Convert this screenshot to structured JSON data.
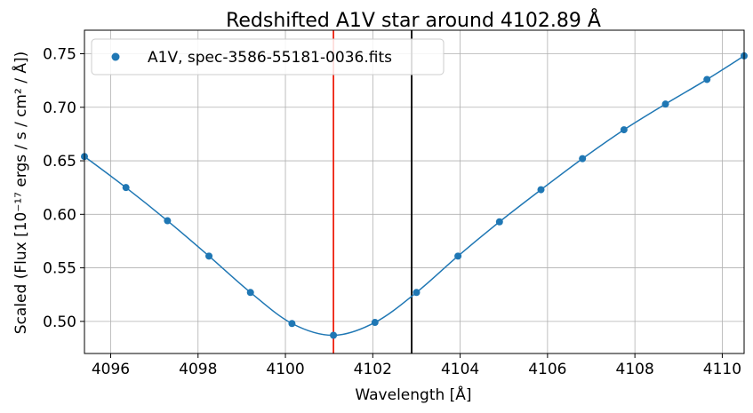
{
  "chart_data": {
    "type": "line",
    "title": "Redshifted A1V star around 4102.89 Å",
    "xlabel": "Wavelength [Å]",
    "ylabel": "Scaled (Flux [10⁻¹⁷ ergs / s / cm² / Å])",
    "xlim": [
      4095.4,
      4110.5
    ],
    "ylim": [
      0.47,
      0.772
    ],
    "xticks": [
      4096,
      4098,
      4100,
      4102,
      4104,
      4106,
      4108,
      4110
    ],
    "yticks": [
      0.5,
      0.55,
      0.6,
      0.65,
      0.7,
      0.75
    ],
    "xtick_labels": [
      "4096",
      "4098",
      "4100",
      "4102",
      "4104",
      "4106",
      "4108",
      "4110"
    ],
    "ytick_labels": [
      "0.50",
      "0.55",
      "0.60",
      "0.65",
      "0.70",
      "0.75"
    ],
    "grid": true,
    "legend": {
      "position": "top-left",
      "entries": [
        "A1V, spec-3586-55181-0036.fits"
      ]
    },
    "series": [
      {
        "name": "A1V, spec-3586-55181-0036.fits",
        "color": "#1f77b4",
        "x": [
          4095.4,
          4096.35,
          4097.3,
          4098.25,
          4099.2,
          4100.15,
          4101.1,
          4102.05,
          4103.0,
          4103.95,
          4104.9,
          4105.85,
          4106.8,
          4107.75,
          4108.7,
          4109.65,
          4110.5
        ],
        "y": [
          0.654,
          0.625,
          0.594,
          0.561,
          0.527,
          0.498,
          0.487,
          0.499,
          0.527,
          0.561,
          0.593,
          0.623,
          0.652,
          0.679,
          0.703,
          0.726,
          0.748
        ]
      }
    ],
    "vlines": [
      {
        "x": 4101.1,
        "color": "#ee2211"
      },
      {
        "x": 4102.89,
        "color": "#000000"
      }
    ]
  }
}
